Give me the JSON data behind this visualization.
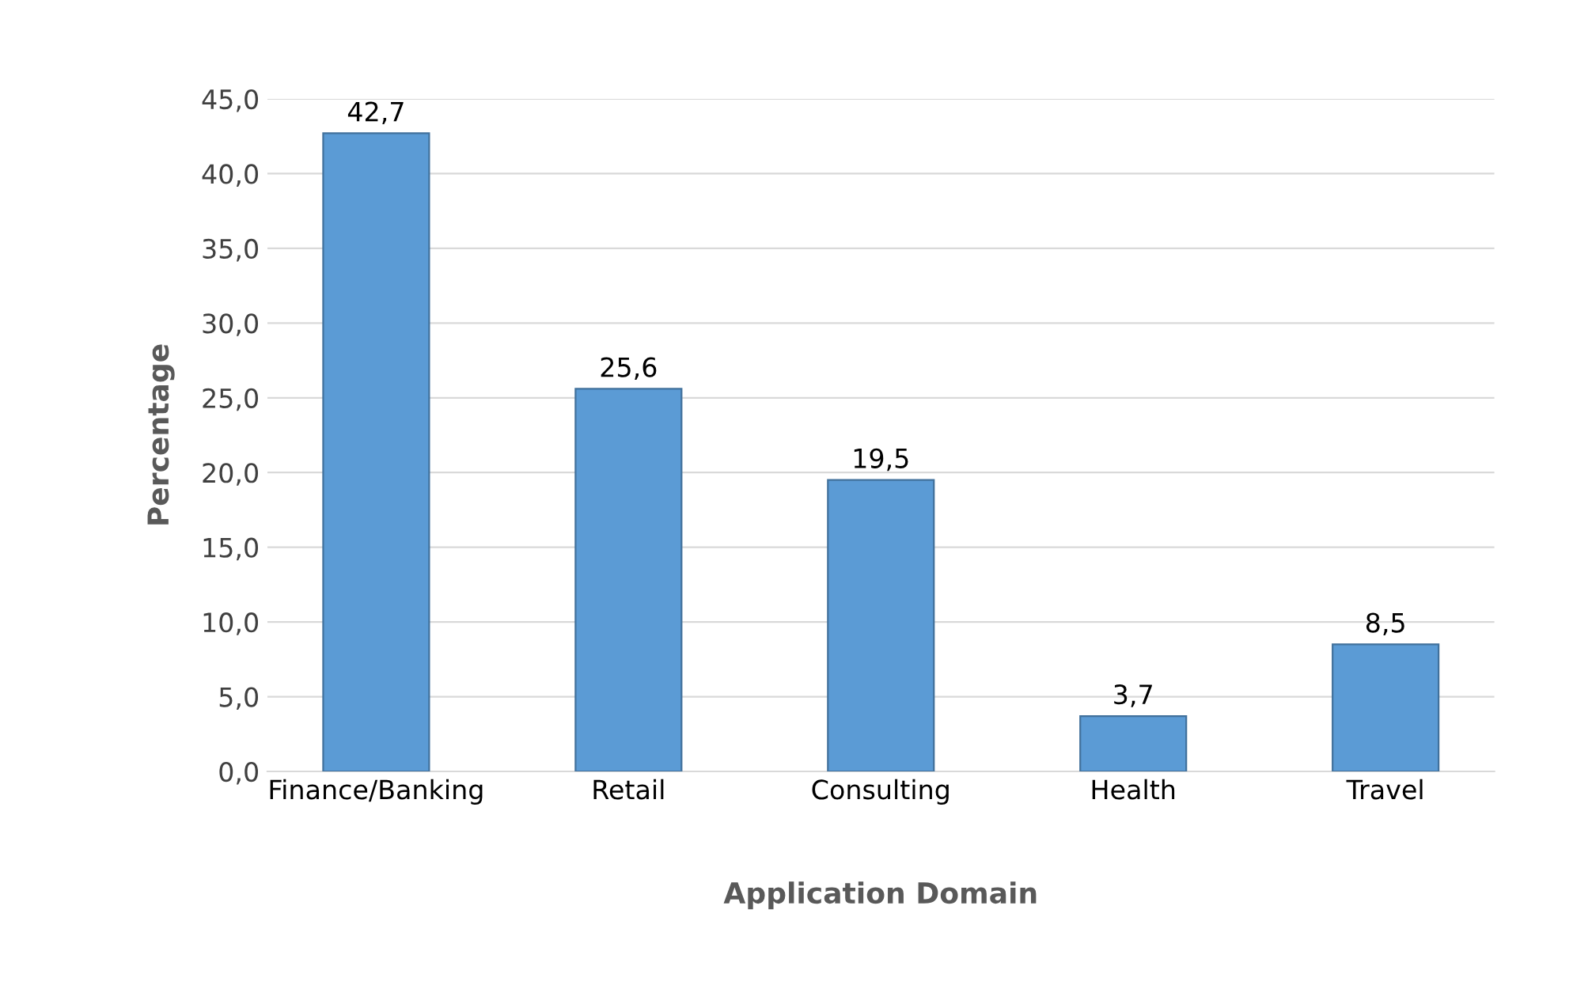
{
  "chart_data": {
    "type": "bar",
    "xlabel": "Application Domain",
    "ylabel": "Percentage",
    "categories": [
      "Finance/Banking",
      "Retail",
      "Consulting",
      "Health",
      "Travel"
    ],
    "values": [
      42.7,
      25.6,
      19.5,
      3.7,
      8.5
    ],
    "value_labels": [
      "42,7",
      "25,6",
      "19,5",
      "3,7",
      "8,5"
    ],
    "color": "#5b9bd5",
    "ylim": [
      0,
      45
    ],
    "yticks": [
      {
        "value": 0,
        "label": "0,0"
      },
      {
        "value": 5,
        "label": "5,0"
      },
      {
        "value": 10,
        "label": "10,0"
      },
      {
        "value": 15,
        "label": "15,0"
      },
      {
        "value": 20,
        "label": "20,0"
      },
      {
        "value": 25,
        "label": "25,0"
      },
      {
        "value": 30,
        "label": "30,0"
      },
      {
        "value": 35,
        "label": "35,0"
      },
      {
        "value": 40,
        "label": "40,0"
      },
      {
        "value": 45,
        "label": "45,0"
      }
    ],
    "grid": "y"
  }
}
